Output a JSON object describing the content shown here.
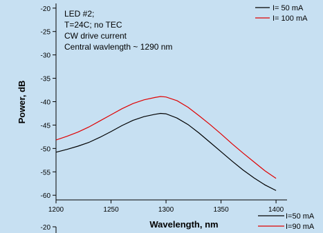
{
  "chart_data": [
    {
      "type": "line",
      "xlabel": "Wavelength, nm",
      "ylabel": "Power, dB",
      "xlim": [
        1200,
        1410
      ],
      "ylim": [
        -61,
        -19
      ],
      "xticks": [
        1200,
        1250,
        1300,
        1350,
        1400
      ],
      "yticks": [
        -20,
        -25,
        -30,
        -35,
        -40,
        -45,
        -50,
        -55,
        -60
      ],
      "annotation_lines": [
        "LED #2;",
        "T=24C; no TEC",
        "CW drive current",
        "Central wavlength ~ 1290 nm"
      ],
      "legend_placement": "top-right",
      "series": [
        {
          "name": "I= 50 mA",
          "color": "#000000",
          "x": [
            1200,
            1210,
            1220,
            1230,
            1240,
            1250,
            1260,
            1270,
            1280,
            1290,
            1295,
            1300,
            1310,
            1320,
            1330,
            1340,
            1350,
            1360,
            1370,
            1380,
            1390,
            1400
          ],
          "y": [
            -50.8,
            -50.2,
            -49.5,
            -48.7,
            -47.6,
            -46.4,
            -45.1,
            -44.0,
            -43.2,
            -42.7,
            -42.5,
            -42.6,
            -43.5,
            -44.9,
            -46.7,
            -48.7,
            -50.7,
            -52.7,
            -54.6,
            -56.3,
            -57.8,
            -59.0
          ]
        },
        {
          "name": "I= 100 mA",
          "color": "#e00000",
          "x": [
            1200,
            1210,
            1220,
            1230,
            1240,
            1250,
            1260,
            1270,
            1280,
            1290,
            1295,
            1300,
            1310,
            1320,
            1330,
            1340,
            1350,
            1360,
            1370,
            1380,
            1390,
            1400
          ],
          "y": [
            -48.2,
            -47.4,
            -46.5,
            -45.4,
            -44.1,
            -42.8,
            -41.5,
            -40.4,
            -39.6,
            -39.1,
            -38.9,
            -39.0,
            -39.8,
            -41.2,
            -43.0,
            -44.9,
            -46.9,
            -49.0,
            -51.0,
            -52.9,
            -54.8,
            -56.4
          ]
        }
      ]
    },
    {
      "type": "line",
      "ylim": [
        -60,
        -20
      ],
      "yticks": [
        -20
      ],
      "legend_placement": "top-right",
      "series": [
        {
          "name": "I=50 mA",
          "color": "#000000",
          "x": [],
          "y": []
        },
        {
          "name": "I=90 mA",
          "color": "#e00000",
          "x": [],
          "y": []
        }
      ]
    }
  ]
}
